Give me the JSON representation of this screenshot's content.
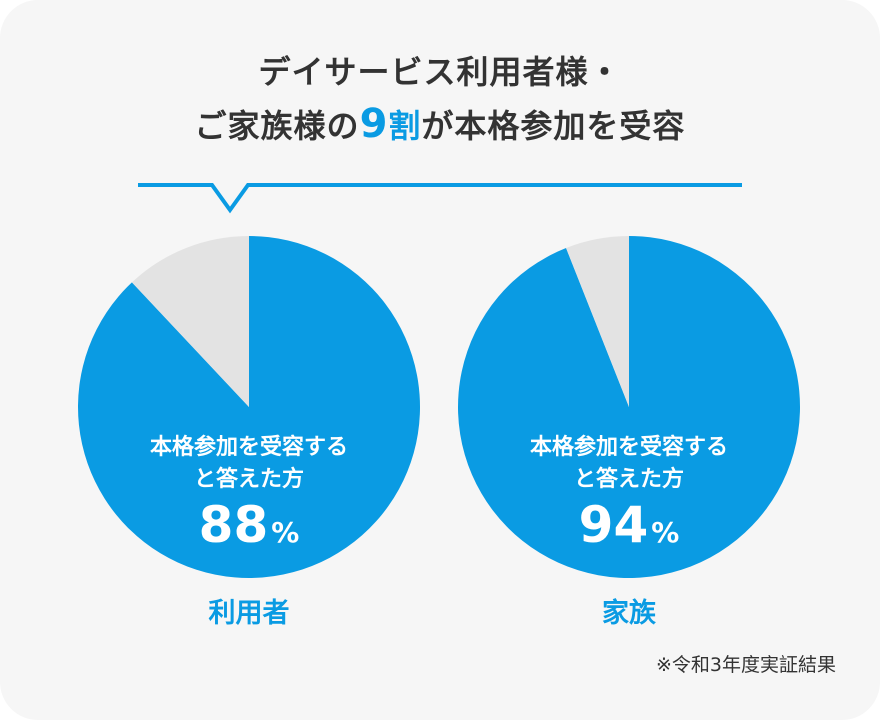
{
  "title": {
    "line1": "デイサービス利用者様・",
    "line2_a": "ご家族様の",
    "line2_num": "9",
    "line2_b": "割",
    "line2_c": "が本格参加を受容"
  },
  "note": "※令和3年度実証結果",
  "colors": {
    "accent": "#0a9be3",
    "remainder": "#e3e3e3",
    "text": "#333333",
    "background": "#f6f6f6"
  },
  "chart_data": [
    {
      "type": "pie",
      "name": "利用者",
      "inner_label_line1": "本格参加を受容する",
      "inner_label_line2": "と答えた方",
      "value_text": "88",
      "unit": "%",
      "slices": [
        {
          "value": 88
        },
        {
          "value": 12
        }
      ]
    },
    {
      "type": "pie",
      "name": "家族",
      "inner_label_line1": "本格参加を受容する",
      "inner_label_line2": "と答えた方",
      "value_text": "94",
      "unit": "%",
      "slices": [
        {
          "value": 94
        },
        {
          "value": 6
        }
      ]
    }
  ]
}
